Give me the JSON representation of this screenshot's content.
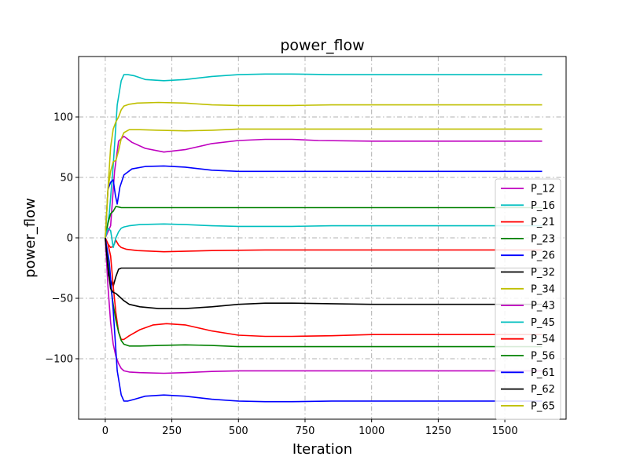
{
  "chart_data": {
    "type": "line",
    "title": "power_flow",
    "xlabel": "Iteration",
    "ylabel": "power_flow",
    "xlim": [
      -100,
      1730
    ],
    "ylim": [
      -150,
      150
    ],
    "xticks": [
      0,
      250,
      500,
      750,
      1000,
      1250,
      1500
    ],
    "yticks": [
      -100,
      -50,
      0,
      50,
      100
    ],
    "grid": true,
    "legend_position": "right",
    "series": [
      {
        "name": "P_12",
        "color": "#bf00bf",
        "x": [
          0,
          20,
          35,
          50,
          70,
          100,
          150,
          220,
          300,
          400,
          500,
          600,
          700,
          800,
          1000,
          1300,
          1640
        ],
        "y": [
          0,
          10,
          55,
          80,
          84,
          79,
          74,
          71,
          73,
          78,
          80.5,
          81.5,
          81.5,
          80.5,
          80,
          80,
          80
        ]
      },
      {
        "name": "P_16",
        "color": "#00bfbf",
        "x": [
          0,
          15,
          30,
          45,
          60,
          70,
          85,
          110,
          150,
          220,
          300,
          400,
          500,
          600,
          700,
          850,
          1000,
          1300,
          1640
        ],
        "y": [
          0,
          20,
          60,
          110,
          130,
          135,
          135,
          134,
          131,
          130,
          131,
          133.5,
          135,
          135.5,
          135.5,
          135,
          135,
          135,
          135
        ]
      },
      {
        "name": "P_21",
        "color": "#ff0000",
        "x": [
          0,
          10,
          20,
          30,
          40,
          50,
          60,
          80,
          120,
          220,
          400,
          600,
          800,
          1000,
          1300,
          1640
        ],
        "y": [
          0,
          -5,
          -8,
          -7,
          -2,
          -6,
          -8,
          -9.5,
          -10.5,
          -11.5,
          -10.5,
          -10,
          -10,
          -10,
          -10,
          -10
        ]
      },
      {
        "name": "P_23",
        "color": "#008000",
        "x": [
          0,
          10,
          20,
          30,
          40,
          50,
          60,
          80,
          120,
          200,
          400,
          600,
          800,
          1000,
          1300,
          1640
        ],
        "y": [
          0,
          12,
          20,
          22,
          26,
          25.5,
          25,
          25,
          25,
          25,
          25,
          25,
          25,
          25,
          25,
          25
        ]
      },
      {
        "name": "P_26",
        "color": "#0000ff",
        "x": [
          0,
          10,
          20,
          30,
          38,
          45,
          55,
          70,
          100,
          150,
          220,
          300,
          400,
          500,
          600,
          800,
          1000,
          1300,
          1640
        ],
        "y": [
          0,
          40,
          46,
          48,
          35,
          28,
          42,
          52,
          57,
          59,
          59.5,
          58.5,
          56,
          55,
          55,
          55,
          55,
          55,
          55
        ]
      },
      {
        "name": "P_32",
        "color": "#000000",
        "x": [
          0,
          10,
          20,
          30,
          40,
          50,
          60,
          80,
          120,
          200,
          400,
          600,
          800,
          1000,
          1300,
          1640
        ],
        "y": [
          0,
          -30,
          -35,
          -40,
          -32,
          -26,
          -25,
          -25,
          -25,
          -25,
          -25,
          -25,
          -25,
          -25,
          -25,
          -25
        ]
      },
      {
        "name": "P_34",
        "color": "#bfbf00",
        "x": [
          0,
          10,
          20,
          30,
          40,
          50,
          60,
          70,
          90,
          120,
          200,
          300,
          400,
          500,
          600,
          700,
          850,
          1000,
          1300,
          1640
        ],
        "y": [
          0,
          40,
          75,
          90,
          96,
          100,
          106,
          109,
          110.5,
          111.5,
          112,
          111.5,
          110,
          109.5,
          109.5,
          109.5,
          110,
          110,
          110,
          110
        ]
      },
      {
        "name": "P_43",
        "color": "#bf00bf",
        "x": [
          0,
          10,
          20,
          30,
          40,
          50,
          60,
          70,
          90,
          130,
          220,
          300,
          400,
          500,
          600,
          700,
          850,
          1000,
          1300,
          1640
        ],
        "y": [
          0,
          -40,
          -70,
          -88,
          -98,
          -104,
          -108,
          -110,
          -111,
          -111.5,
          -112,
          -111.5,
          -110.5,
          -110,
          -110,
          -110,
          -110,
          -110,
          -110,
          -110
        ]
      },
      {
        "name": "P_45",
        "color": "#00bfbf",
        "x": [
          0,
          10,
          20,
          30,
          40,
          50,
          60,
          70,
          90,
          130,
          220,
          300,
          400,
          500,
          600,
          700,
          850,
          1000,
          1300,
          1640
        ],
        "y": [
          0,
          8,
          6,
          -8,
          0,
          5,
          8,
          9,
          10,
          11,
          11.5,
          11,
          10,
          9.5,
          9.5,
          9.5,
          10,
          10,
          10,
          10
        ]
      },
      {
        "name": "P_54",
        "color": "#ff0000",
        "x": [
          0,
          10,
          20,
          30,
          40,
          50,
          60,
          70,
          90,
          130,
          180,
          230,
          300,
          400,
          500,
          600,
          700,
          850,
          1000,
          1300,
          1640
        ],
        "y": [
          0,
          -5,
          -15,
          -40,
          -62,
          -78,
          -84,
          -84,
          -81,
          -76,
          -72,
          -71,
          -72,
          -77,
          -80.5,
          -81.5,
          -81.5,
          -81,
          -80,
          -80,
          -80
        ]
      },
      {
        "name": "P_56",
        "color": "#008000",
        "x": [
          0,
          10,
          20,
          30,
          40,
          50,
          60,
          70,
          90,
          130,
          200,
          300,
          400,
          500,
          600,
          800,
          1000,
          1300,
          1640
        ],
        "y": [
          0,
          -20,
          -40,
          -55,
          -68,
          -78,
          -85,
          -88,
          -89.5,
          -89.5,
          -89,
          -88.5,
          -89,
          -90,
          -90,
          -90,
          -90,
          -90,
          -90
        ]
      },
      {
        "name": "P_61",
        "color": "#0000ff",
        "x": [
          0,
          15,
          30,
          45,
          60,
          70,
          85,
          110,
          150,
          220,
          300,
          400,
          500,
          600,
          700,
          850,
          1000,
          1300,
          1640
        ],
        "y": [
          0,
          -20,
          -60,
          -110,
          -130,
          -135,
          -135,
          -133.5,
          -131,
          -130,
          -131,
          -133.5,
          -135,
          -135.5,
          -135.5,
          -135,
          -135,
          -135,
          -135
        ]
      },
      {
        "name": "P_62",
        "color": "#000000",
        "x": [
          0,
          10,
          20,
          30,
          40,
          50,
          60,
          70,
          90,
          130,
          200,
          300,
          400,
          500,
          600,
          700,
          850,
          1000,
          1300,
          1640
        ],
        "y": [
          0,
          -25,
          -42,
          -45,
          -46,
          -48,
          -50,
          -52,
          -55,
          -57,
          -58.5,
          -58.5,
          -57,
          -55,
          -54,
          -54,
          -54.5,
          -55,
          -55,
          -55
        ]
      },
      {
        "name": "P_65",
        "color": "#bfbf00",
        "x": [
          0,
          10,
          20,
          30,
          40,
          50,
          60,
          70,
          90,
          130,
          200,
          300,
          400,
          500,
          600,
          700,
          850,
          1000,
          1300,
          1640
        ],
        "y": [
          0,
          40,
          55,
          63,
          64,
          72,
          82,
          87,
          89.5,
          89.5,
          89,
          88.5,
          89,
          90,
          90,
          90,
          90,
          90,
          90,
          90
        ]
      }
    ]
  }
}
